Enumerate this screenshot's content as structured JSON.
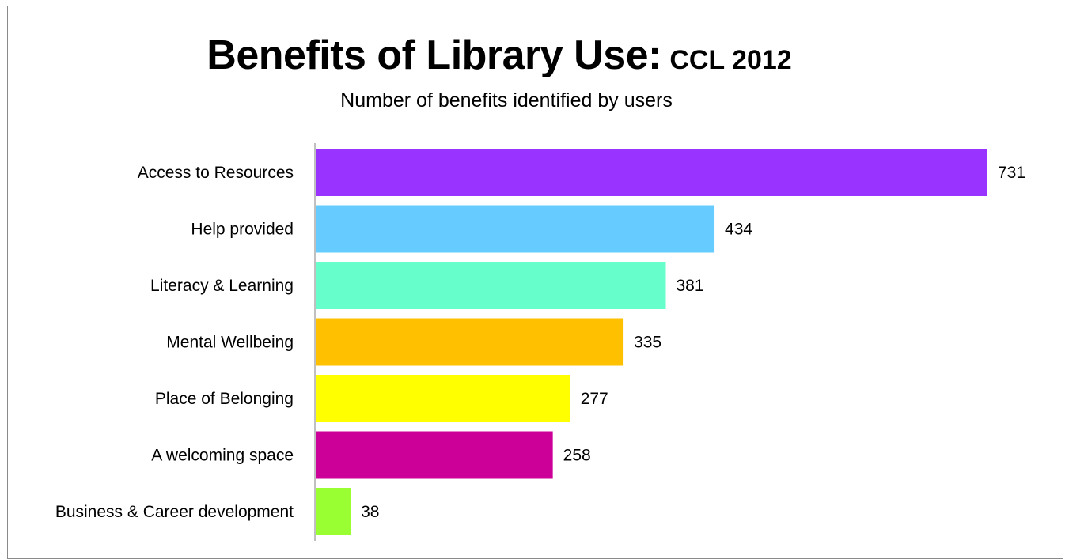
{
  "chart_data": {
    "type": "bar",
    "orientation": "horizontal",
    "title": "Benefits of Library Use:",
    "title_suffix": "CCL 2012",
    "subtitle": "Number of benefits identified by users",
    "categories": [
      "Access to Resources",
      "Help provided",
      "Literacy & Learning",
      "Mental Wellbeing",
      "Place of Belonging",
      "A welcoming space",
      "Business & Career development"
    ],
    "values": [
      731,
      434,
      381,
      335,
      277,
      258,
      38
    ],
    "colors": [
      "#9933ff",
      "#66ccff",
      "#66ffcc",
      "#ffc000",
      "#ffff00",
      "#cc0099",
      "#99ff33"
    ],
    "xlim": [
      0,
      731
    ],
    "grid": false,
    "legend": "none",
    "data_labels": true
  }
}
